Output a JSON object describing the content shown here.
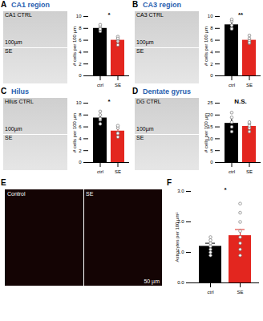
{
  "chart_data": [
    {
      "type": "bar",
      "panel": "A",
      "title": "CA1 region",
      "image": {
        "labels": [
          "CA1 CTRL",
          "SE"
        ],
        "scale_bar": "100µm"
      },
      "categories": [
        "ctrl",
        "SE"
      ],
      "values": [
        8.0,
        6.0
      ],
      "error": [
        0.4,
        0.4
      ],
      "points": [
        [
          7.5,
          7.8,
          8.2,
          8.6,
          7.9
        ],
        [
          5.2,
          5.8,
          6.1,
          6.6,
          6.3
        ]
      ],
      "colors": [
        "#000000",
        "#e3261f"
      ],
      "ylabel": "# cells per 100 µm",
      "ylim": [
        0,
        10
      ],
      "yticks": [
        0,
        2,
        4,
        6,
        8,
        10
      ],
      "significance": "*"
    },
    {
      "type": "bar",
      "panel": "B",
      "title": "CA3 region",
      "image": {
        "labels": [
          "CA3 CTRL",
          "SE"
        ],
        "scale_bar": "100µm"
      },
      "categories": [
        "ctrl",
        "SE"
      ],
      "values": [
        8.6,
        6.0
      ],
      "error": [
        0.5,
        0.4
      ],
      "points": [
        [
          8.0,
          8.5,
          9.2,
          9.5,
          7.9
        ],
        [
          5.5,
          5.9,
          6.3,
          6.8,
          5.6
        ]
      ],
      "colors": [
        "#000000",
        "#e3261f"
      ],
      "ylabel": "# cells per 100 µm",
      "ylim": [
        0,
        10
      ],
      "yticks": [
        0,
        2,
        4,
        6,
        8,
        10
      ],
      "significance": "**"
    },
    {
      "type": "bar",
      "panel": "C",
      "title": "Hilus",
      "image": {
        "labels": [
          "Hilus CTRL",
          "SE"
        ],
        "scale_bar": "100µm"
      },
      "categories": [
        "ctrl",
        "SE"
      ],
      "values": [
        7.5,
        5.3
      ],
      "error": [
        0.6,
        0.6
      ],
      "points": [
        [
          6.5,
          7.2,
          8.0,
          8.6,
          7.4
        ],
        [
          4.3,
          5.0,
          5.8,
          6.2,
          4.9
        ]
      ],
      "colors": [
        "#000000",
        "#e3261f"
      ],
      "ylabel": "# cells per 100 µm",
      "ylim": [
        0,
        10
      ],
      "yticks": [
        0,
        2,
        4,
        6,
        8,
        10
      ],
      "significance": "*"
    },
    {
      "type": "bar",
      "panel": "D",
      "title": "Dentate gyrus",
      "image": {
        "labels": [
          "DG CTRL",
          "SE"
        ],
        "scale_bar": "100µm"
      },
      "categories": [
        "ctrl",
        "SE"
      ],
      "values": [
        16.5,
        15.2
      ],
      "error": [
        1.5,
        1.0
      ],
      "points": [
        [
          13,
          15,
          17,
          19,
          21
        ],
        [
          13,
          14.5,
          15.5,
          16.5,
          17
        ]
      ],
      "colors": [
        "#000000",
        "#e3261f"
      ],
      "ylabel": "# cells per 100 µm",
      "ylim": [
        0,
        25
      ],
      "yticks": [
        0,
        5,
        10,
        15,
        20,
        25
      ],
      "significance": "N.S."
    },
    {
      "type": "bar",
      "panel": "F",
      "image_panel": "E",
      "image": {
        "labels": [
          "Control",
          "SE"
        ],
        "scale_bar": "50 µm"
      },
      "categories": [
        "ctrl",
        "SE"
      ],
      "values": [
        1.2,
        1.55
      ],
      "error": [
        0.1,
        0.2
      ],
      "points": [
        [
          0.9,
          1.0,
          1.1,
          1.2,
          1.3,
          1.4,
          1.5
        ],
        [
          0.9,
          1.1,
          1.3,
          1.5,
          1.7,
          2.0,
          2.3,
          2.6
        ]
      ],
      "colors": [
        "#000000",
        "#e3261f"
      ],
      "ylabel": "Astrocytes per 100 µm²",
      "ylim": [
        0,
        3
      ],
      "yticks": [
        0,
        1,
        2,
        3
      ],
      "significance": "*"
    }
  ]
}
